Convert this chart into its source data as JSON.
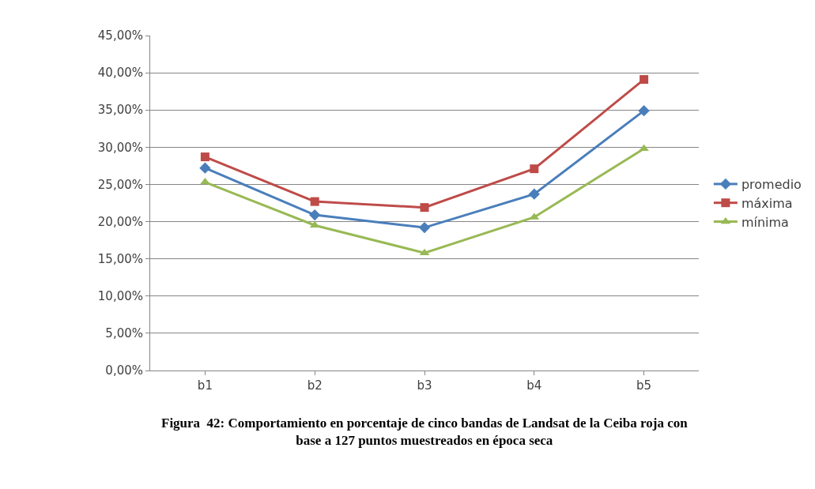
{
  "chart_data": {
    "type": "line",
    "categories": [
      "b1",
      "b2",
      "b3",
      "b4",
      "b5"
    ],
    "series": [
      {
        "name": "promedio",
        "color": "#4a7ebb",
        "marker": "diamond",
        "values": [
          27.2,
          20.9,
          19.2,
          23.7,
          34.9
        ]
      },
      {
        "name": "máxima",
        "color": "#be4b48",
        "marker": "square",
        "values": [
          28.7,
          22.7,
          21.9,
          27.1,
          39.1
        ]
      },
      {
        "name": "mínima",
        "color": "#98b954",
        "marker": "triangle",
        "values": [
          25.3,
          19.5,
          15.8,
          20.6,
          29.8
        ]
      }
    ],
    "ylim": [
      0,
      45
    ],
    "yticks": [
      {
        "value": 0,
        "label": "0,00%"
      },
      {
        "value": 5,
        "label": "5,00%"
      },
      {
        "value": 10,
        "label": "10,00%"
      },
      {
        "value": 15,
        "label": "15,00%"
      },
      {
        "value": 20,
        "label": "20,00%"
      },
      {
        "value": 25,
        "label": "25,00%"
      },
      {
        "value": 30,
        "label": "30,00%"
      },
      {
        "value": 35,
        "label": "35,00%"
      },
      {
        "value": 40,
        "label": "40,00%"
      },
      {
        "value": 45,
        "label": "45,00%"
      }
    ],
    "grid": "y",
    "legend": "right",
    "line_style": "solid",
    "annotations": [
      "Figura  42: Comportamiento en porcentaje de cinco bandas de Landsat de la Ceiba roja con base a 127 puntos muestreados en época seca"
    ]
  }
}
